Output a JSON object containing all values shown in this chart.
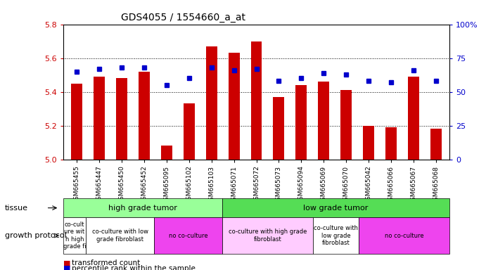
{
  "title": "GDS4055 / 1554660_a_at",
  "samples": [
    "GSM665455",
    "GSM665447",
    "GSM665450",
    "GSM665452",
    "GSM665095",
    "GSM665102",
    "GSM665103",
    "GSM665071",
    "GSM665072",
    "GSM665073",
    "GSM665094",
    "GSM665069",
    "GSM665070",
    "GSM665042",
    "GSM665066",
    "GSM665067",
    "GSM665068"
  ],
  "bar_values": [
    5.45,
    5.49,
    5.48,
    5.52,
    5.08,
    5.33,
    5.67,
    5.63,
    5.7,
    5.37,
    5.44,
    5.46,
    5.41,
    5.2,
    5.19,
    5.49,
    5.18
  ],
  "dot_values": [
    65,
    67,
    68,
    68,
    55,
    60,
    68,
    66,
    67,
    58,
    60,
    64,
    63,
    58,
    57,
    66,
    58
  ],
  "ylim_left": [
    5.0,
    5.8
  ],
  "ylim_right": [
    0,
    100
  ],
  "yticks_left": [
    5.0,
    5.2,
    5.4,
    5.6,
    5.8
  ],
  "yticks_right": [
    0,
    25,
    50,
    75,
    100
  ],
  "bar_color": "#cc0000",
  "dot_color": "#0000cc",
  "bar_bottom": 5.0,
  "tissue_groups": [
    {
      "label": "high grade tumor",
      "start": 0,
      "end": 7,
      "color": "#99ff99"
    },
    {
      "label": "low grade tumor",
      "start": 7,
      "end": 17,
      "color": "#55dd55"
    }
  ],
  "protocol_groups": [
    {
      "label": "co-cult\nure wit\nh high\ngrade fi",
      "start": 0,
      "end": 1,
      "color": "#ffffff"
    },
    {
      "label": "co-culture with low\ngrade fibroblast",
      "start": 1,
      "end": 4,
      "color": "#ffffff"
    },
    {
      "label": "no co-culture",
      "start": 4,
      "end": 7,
      "color": "#ee44ee"
    },
    {
      "label": "co-culture with high grade\nfibroblast",
      "start": 7,
      "end": 11,
      "color": "#ffccff"
    },
    {
      "label": "co-culture with\nlow grade\nfibroblast",
      "start": 11,
      "end": 13,
      "color": "#ffffff"
    },
    {
      "label": "no co-culture",
      "start": 13,
      "end": 17,
      "color": "#ee44ee"
    }
  ],
  "legend_bar_label": "transformed count",
  "legend_dot_label": "percentile rank within the sample",
  "right_ylabel_color": "#0000cc",
  "left_ylabel_color": "#cc0000",
  "grid_yticks": [
    5.2,
    5.4,
    5.6
  ]
}
